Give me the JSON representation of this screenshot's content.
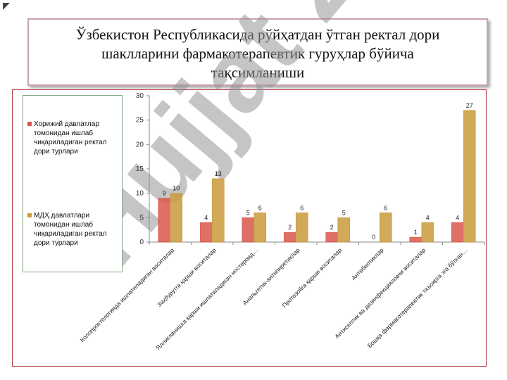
{
  "title": "Ўзбекистон Республикасида рўйҳатдан ўтган ректал дори шаклларини фармакотерапевтик гуруҳлар бўйича тақсимланиши",
  "watermark": "Hujjat 24",
  "colors": {
    "series1": "#d9574a",
    "series2": "#c99a3c",
    "frame": "#b23a48",
    "legend_border": "#7fa67f"
  },
  "chart_data": {
    "type": "bar",
    "categories": [
      "Колопроктологияда ишлатиладиган воситалар",
      "Заҳбурутга қарши воситалар",
      "Яллиғланишга қарши ишлатиладиган ностероид…",
      "Анальгетик-антипиретиклар",
      "Протозойга қарши воситалар",
      "Антибиотиклар",
      "Антисептик ва дезинфекцияловчи воситалар",
      "Бошқа фармакотерапевтик таъсирга эга бўлган…"
    ],
    "series": [
      {
        "name": "Хорижий давлатлар томонидан ишлаб чиқариладиган ректал дори турлари",
        "values": [
          9,
          4,
          5,
          2,
          2,
          0,
          1,
          4
        ]
      },
      {
        "name": "МДҲ давлатлари томонидан ишлаб чиқариладиган ректал дори турлари",
        "values": [
          10,
          13,
          6,
          6,
          5,
          6,
          4,
          27
        ]
      }
    ],
    "yticks": [
      0,
      5,
      10,
      15,
      20,
      25,
      30
    ],
    "ylim": [
      0,
      30
    ],
    "legend_position": "left"
  }
}
